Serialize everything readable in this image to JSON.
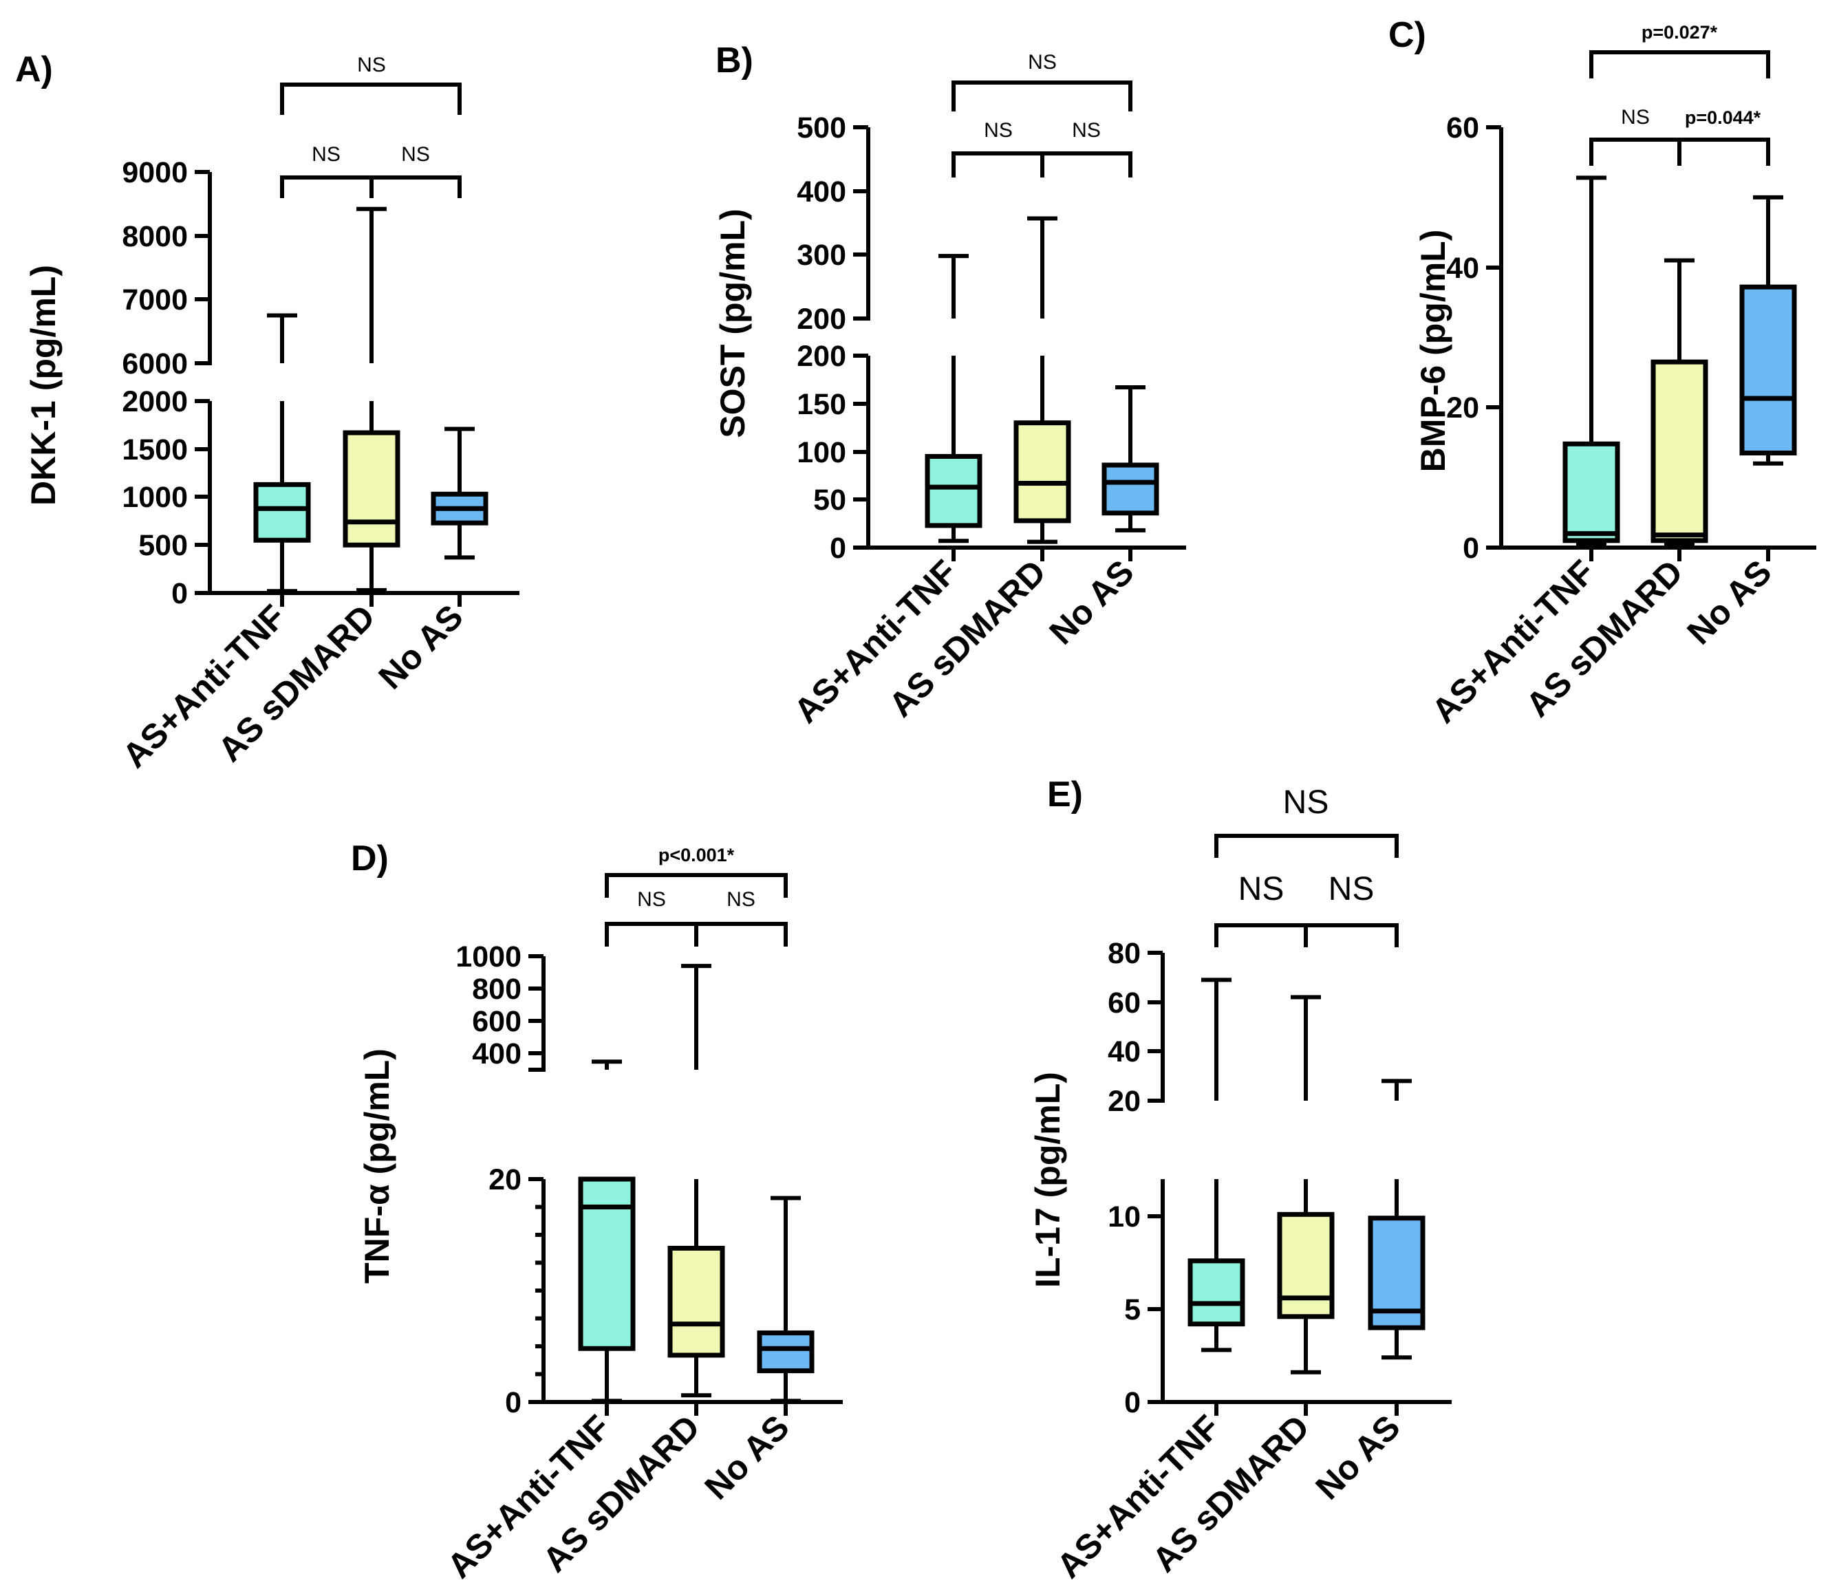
{
  "colors": {
    "as_anti_tnf": "#8ef2de",
    "as_sdmard": "#f0f8b4",
    "no_as": "#6cb8f2",
    "stroke": "#000000"
  },
  "chart_data": [
    {
      "panel": "A)",
      "type": "box",
      "ylabel": "DKK-1 (pg/mL)",
      "categories": [
        "AS+Anti-TNF",
        "AS sDMARD",
        "No AS"
      ],
      "axis_segments": [
        {
          "range": [
            0,
            2000
          ],
          "ticks": [
            "0",
            "500",
            "1000",
            "1500",
            "2000"
          ]
        },
        {
          "range": [
            6000,
            9000
          ],
          "ticks": [
            "6000",
            "7000",
            "8000",
            "9000"
          ]
        }
      ],
      "series": [
        {
          "name": "AS+Anti-TNF",
          "min": 20,
          "q1": 550,
          "median": 880,
          "q3": 1130,
          "max": 6750
        },
        {
          "name": "AS sDMARD",
          "min": 30,
          "q1": 500,
          "median": 740,
          "q3": 1670,
          "max": 8420
        },
        {
          "name": "No AS",
          "min": 370,
          "q1": 730,
          "median": 880,
          "q3": 1030,
          "max": 1710
        }
      ],
      "comparisons": [
        {
          "label": "NS",
          "groups": [
            "AS+Anti-TNF",
            "AS sDMARD"
          ]
        },
        {
          "label": "NS",
          "groups": [
            "AS sDMARD",
            "No AS"
          ]
        },
        {
          "label": "NS",
          "groups": [
            "AS+Anti-TNF",
            "No AS"
          ]
        }
      ]
    },
    {
      "panel": "B)",
      "type": "box",
      "ylabel": "SOST (pg/mL)",
      "categories": [
        "AS+Anti-TNF",
        "AS sDMARD",
        "No AS"
      ],
      "axis_segments": [
        {
          "range": [
            0,
            200
          ],
          "ticks": [
            "0",
            "50",
            "100",
            "150",
            "200"
          ]
        },
        {
          "range": [
            200,
            500
          ],
          "ticks": [
            "200",
            "300",
            "400",
            "500"
          ]
        }
      ],
      "series": [
        {
          "name": "AS+Anti-TNF",
          "min": 7,
          "q1": 23,
          "median": 63,
          "q3": 95,
          "max": 298
        },
        {
          "name": "AS sDMARD",
          "min": 6,
          "q1": 28,
          "median": 67,
          "q3": 130,
          "max": 357
        },
        {
          "name": "No AS",
          "min": 18,
          "q1": 36,
          "median": 68,
          "q3": 86,
          "max": 167
        }
      ],
      "comparisons": [
        {
          "label": "NS",
          "groups": [
            "AS+Anti-TNF",
            "AS sDMARD"
          ]
        },
        {
          "label": "NS",
          "groups": [
            "AS sDMARD",
            "No AS"
          ]
        },
        {
          "label": "NS",
          "groups": [
            "AS+Anti-TNF",
            "No AS"
          ]
        }
      ]
    },
    {
      "panel": "C)",
      "type": "box",
      "ylabel": "BMP-6 (pg/mL)",
      "categories": [
        "AS+Anti-TNF",
        "AS sDMARD",
        "No AS"
      ],
      "axis_segments": [
        {
          "range": [
            0,
            60
          ],
          "ticks": [
            "0",
            "20",
            "40",
            "60"
          ]
        }
      ],
      "series": [
        {
          "name": "AS+Anti-TNF",
          "min": 0.5,
          "q1": 1,
          "median": 2,
          "q3": 14.8,
          "max": 52.8
        },
        {
          "name": "AS sDMARD",
          "min": 0.5,
          "q1": 1,
          "median": 1.8,
          "q3": 26.5,
          "max": 41
        },
        {
          "name": "No AS",
          "min": 12,
          "q1": 13.5,
          "median": 21.3,
          "q3": 37.2,
          "max": 50
        }
      ],
      "comparisons": [
        {
          "label": "NS",
          "groups": [
            "AS+Anti-TNF",
            "AS sDMARD"
          ]
        },
        {
          "label": "p=0.044*",
          "groups": [
            "AS sDMARD",
            "No AS"
          ]
        },
        {
          "label": "p=0.027*",
          "groups": [
            "AS+Anti-TNF",
            "No AS"
          ]
        }
      ]
    },
    {
      "panel": "D)",
      "type": "box",
      "ylabel": "TNF-α (pg/mL)",
      "categories": [
        "AS+Anti-TNF",
        "AS sDMARD",
        "No AS"
      ],
      "axis_segments": [
        {
          "range": [
            0,
            20
          ],
          "ticks": [
            "0",
            "20"
          ]
        },
        {
          "range": [
            300,
            1000
          ],
          "ticks": [
            "400",
            "600",
            "800",
            "1000"
          ]
        }
      ],
      "series": [
        {
          "name": "AS+Anti-TNF",
          "min": 0.1,
          "q1": 4.8,
          "median": 17.5,
          "q3": 20,
          "max": 350
        },
        {
          "name": "AS sDMARD",
          "min": 0.6,
          "q1": 4.2,
          "median": 7.0,
          "q3": 13.8,
          "max": 940
        },
        {
          "name": "No AS",
          "min": 0.1,
          "q1": 2.8,
          "median": 4.8,
          "q3": 6.2,
          "max": 18.3
        }
      ],
      "comparisons": [
        {
          "label": "NS",
          "groups": [
            "AS+Anti-TNF",
            "AS sDMARD"
          ]
        },
        {
          "label": "NS",
          "groups": [
            "AS sDMARD",
            "No AS"
          ]
        },
        {
          "label": "p<0.001*",
          "groups": [
            "AS+Anti-TNF",
            "No AS"
          ]
        }
      ]
    },
    {
      "panel": "E)",
      "type": "box",
      "ylabel": "IL-17 (pg/mL)",
      "categories": [
        "AS+Anti-TNF",
        "AS sDMARD",
        "No AS"
      ],
      "axis_segments": [
        {
          "range": [
            0,
            12
          ],
          "ticks": [
            "0",
            "5",
            "10"
          ]
        },
        {
          "range": [
            20,
            80
          ],
          "ticks": [
            "20",
            "40",
            "60",
            "80"
          ]
        }
      ],
      "series": [
        {
          "name": "AS+Anti-TNF",
          "min": 2.8,
          "q1": 4.2,
          "median": 5.3,
          "q3": 7.6,
          "max": 69
        },
        {
          "name": "AS sDMARD",
          "min": 1.6,
          "q1": 4.6,
          "median": 5.6,
          "q3": 10.1,
          "max": 62
        },
        {
          "name": "No AS",
          "min": 2.4,
          "q1": 4.0,
          "median": 4.9,
          "q3": 9.9,
          "max": 28
        }
      ],
      "comparisons": [
        {
          "label": "NS",
          "groups": [
            "AS+Anti-TNF",
            "AS sDMARD"
          ]
        },
        {
          "label": "NS",
          "groups": [
            "AS sDMARD",
            "No AS"
          ]
        },
        {
          "label": "NS",
          "groups": [
            "AS+Anti-TNF",
            "No AS"
          ]
        }
      ]
    }
  ]
}
